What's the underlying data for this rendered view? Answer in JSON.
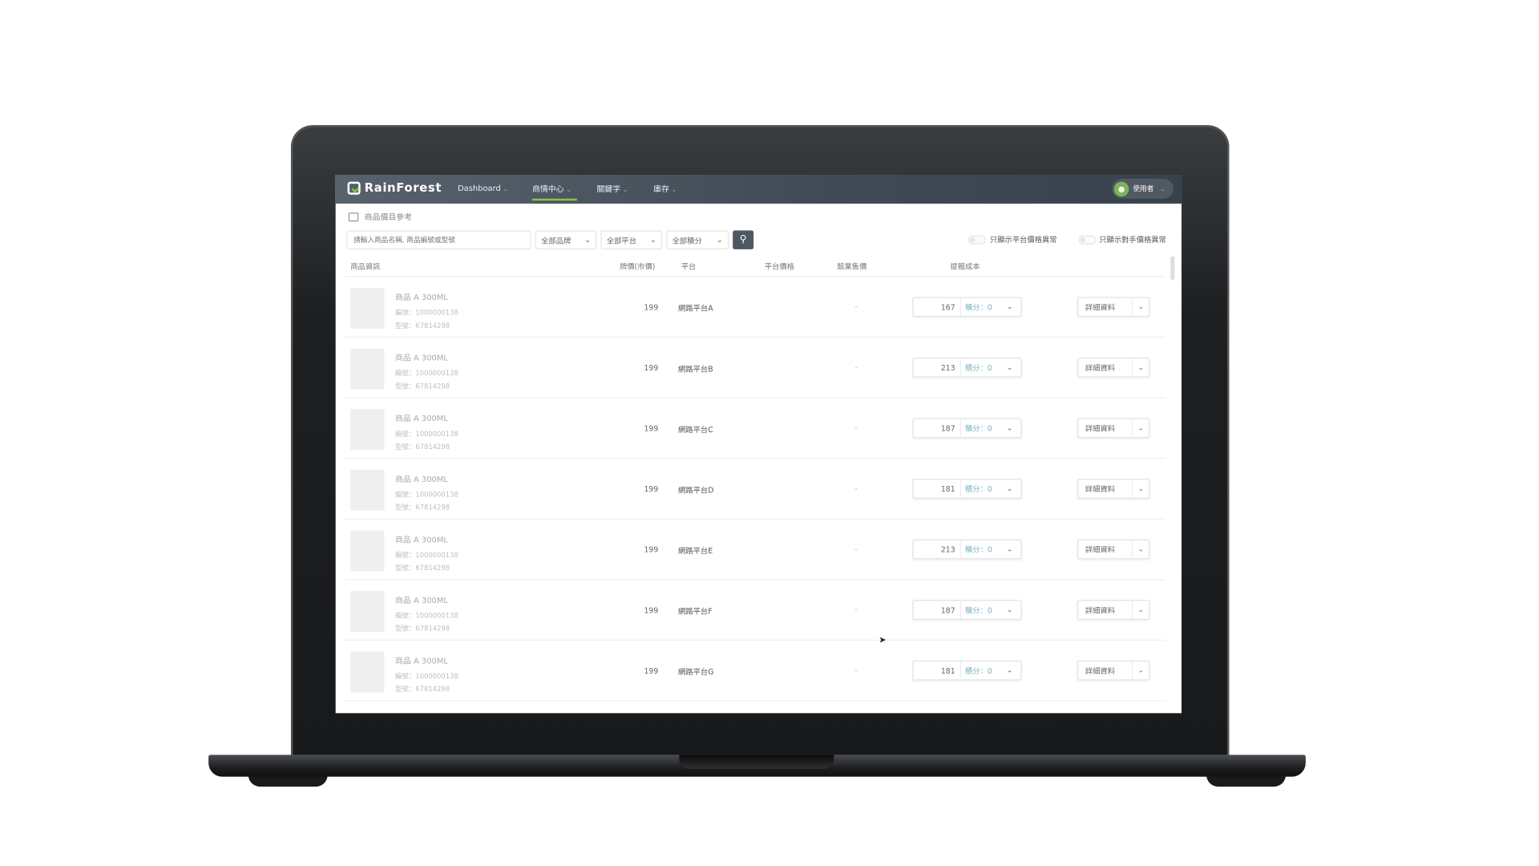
{
  "nav": {
    "logo": "RainForest",
    "items": [
      {
        "label": "Dashboard"
      },
      {
        "label": "商情中心",
        "active": true
      },
      {
        "label": "關鍵字"
      },
      {
        "label": "庫存"
      }
    ],
    "user": "使用者",
    "accent": "#8bc34a"
  },
  "breadcrumb": "商品價目參考",
  "filters": {
    "search_placeholder": "請輸入商品名稱, 商品編號或型號",
    "brand": "全部品牌",
    "platform": "全部平台",
    "points": "全部積分",
    "toggle1": "只顯示平台價格異常",
    "toggle2": "只顯示對手價格異常"
  },
  "table": {
    "headers": [
      "商品資訊",
      "牌價(市價)",
      "平台",
      "平台價格",
      "競業售價",
      "提報成本"
    ],
    "rows": [
      {
        "name": "商品 A 300ML",
        "code": "編號：1000000138",
        "model": "型號：67814298",
        "price": "199",
        "platform": "網路平台A",
        "platform_price": "",
        "competitor": "-",
        "cost": "167",
        "points": "積分：0",
        "detail": "詳細資料"
      },
      {
        "name": "商品 A 300ML",
        "code": "編號：1000000138",
        "model": "型號：67814298",
        "price": "199",
        "platform": "網路平台B",
        "platform_price": "",
        "competitor": "-",
        "cost": "213",
        "points": "積分：0",
        "detail": "詳細資料"
      },
      {
        "name": "商品 A 300ML",
        "code": "編號：1000000138",
        "model": "型號：67814298",
        "price": "199",
        "platform": "網路平台C",
        "platform_price": "",
        "competitor": "-",
        "cost": "187",
        "points": "積分：0",
        "detail": "詳細資料"
      },
      {
        "name": "商品 A 300ML",
        "code": "編號：1000000138",
        "model": "型號：67814298",
        "price": "199",
        "platform": "網路平台D",
        "platform_price": "",
        "competitor": "-",
        "cost": "181",
        "points": "積分：0",
        "detail": "詳細資料"
      },
      {
        "name": "商品 A 300ML",
        "code": "編號：1000000138",
        "model": "型號：67814298",
        "price": "199",
        "platform": "網路平台E",
        "platform_price": "",
        "competitor": "-",
        "cost": "213",
        "points": "積分：0",
        "detail": "詳細資料"
      },
      {
        "name": "商品 A 300ML",
        "code": "編號：1000000138",
        "model": "型號：67814298",
        "price": "199",
        "platform": "網路平台F",
        "platform_price": "",
        "competitor": "-",
        "cost": "187",
        "points": "積分：0",
        "detail": "詳細資料"
      },
      {
        "name": "商品 A 300ML",
        "code": "編號：1000000138",
        "model": "型號：67814298",
        "price": "199",
        "platform": "網路平台G",
        "platform_price": "",
        "competitor": "-",
        "cost": "181",
        "points": "積分：0",
        "detail": "詳細資料"
      }
    ]
  }
}
